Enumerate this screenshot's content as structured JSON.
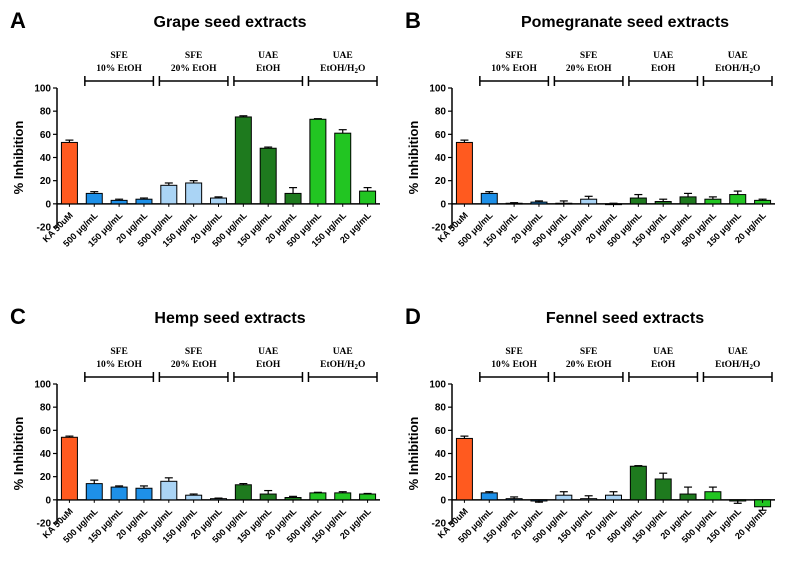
{
  "figure": {
    "categories": [
      "KA 50uM",
      "500 μg/mL",
      "150 μg/mL",
      "20 μg/mL",
      "500 μg/mL",
      "150 μg/mL",
      "20 μg/mL",
      "500 μg/mL",
      "150 μg/mL",
      "20 μg/mL",
      "500 μg/mL",
      "150 μg/mL",
      "20 μg/mL"
    ],
    "bar_colors": [
      "#ff5a1f",
      "#1e90e8",
      "#1e90e8",
      "#1e90e8",
      "#aad4f5",
      "#aad4f5",
      "#aad4f5",
      "#1e7a1e",
      "#1e7a1e",
      "#1e7a1e",
      "#22c522",
      "#22c522",
      "#22c522"
    ],
    "groups": [
      {
        "line1": "SFE",
        "line2": "10% EtOH",
        "from": 1,
        "to": 3
      },
      {
        "line1": "SFE",
        "line2": "20% EtOH",
        "from": 4,
        "to": 6
      },
      {
        "line1": "UAE",
        "line2": "EtOH",
        "from": 7,
        "to": 9
      },
      {
        "line1": "UAE",
        "line2": "EtOH/H",
        "sub": "2",
        "tail": "O",
        "from": 10,
        "to": 12
      }
    ],
    "ylabel": "% Inhibition",
    "ylim": [
      -20,
      100
    ],
    "yticks": [
      "-20",
      "0",
      "20",
      "40",
      "60",
      "80",
      "100"
    ],
    "ytick_values": [
      -20,
      0,
      20,
      40,
      60,
      80,
      100
    ]
  },
  "chart_data": [
    {
      "type": "bar",
      "letter": "A",
      "title": "Grape seed extracts",
      "values": [
        53,
        9,
        3,
        4,
        16,
        18,
        5,
        75,
        48,
        9,
        73,
        61,
        11
      ],
      "errors": [
        2,
        1.5,
        1,
        1,
        2,
        2,
        1,
        1,
        1,
        5,
        0.5,
        3,
        3
      ]
    },
    {
      "type": "bar",
      "letter": "B",
      "title": "Pomegranate seed extracts",
      "values": [
        53,
        9,
        0.5,
        1.5,
        0.5,
        4,
        0,
        5,
        2,
        6,
        4,
        8,
        3
      ],
      "errors": [
        2,
        1.5,
        0.5,
        1,
        2,
        2.5,
        0.5,
        3,
        2,
        3,
        2,
        3,
        1
      ]
    },
    {
      "type": "bar",
      "letter": "C",
      "title": "Hemp seed extracts",
      "values": [
        54,
        14,
        11,
        10,
        16,
        4,
        1,
        13,
        5,
        2,
        6,
        6,
        5
      ],
      "errors": [
        1,
        3,
        1,
        2,
        3,
        1,
        0.5,
        1,
        3,
        1,
        0.5,
        1,
        0.5
      ]
    },
    {
      "type": "bar",
      "letter": "D",
      "title": "Fennel seed extracts",
      "values": [
        53,
        6,
        1,
        -1,
        4,
        1,
        4,
        29,
        18,
        5,
        7,
        -1,
        -6
      ],
      "errors": [
        2,
        1,
        1.5,
        1,
        3,
        2.5,
        3,
        0.5,
        5,
        6,
        4,
        2,
        3
      ]
    }
  ]
}
